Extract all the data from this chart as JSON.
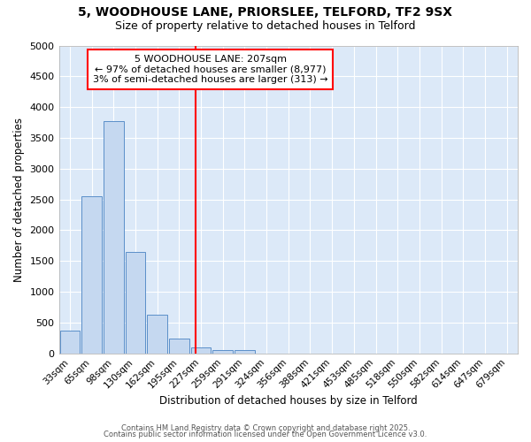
{
  "title_line1": "5, WOODHOUSE LANE, PRIORSLEE, TELFORD, TF2 9SX",
  "title_line2": "Size of property relative to detached houses in Telford",
  "xlabel": "Distribution of detached houses by size in Telford",
  "ylabel": "Number of detached properties",
  "bar_color": "#c5d8f0",
  "bar_edge_color": "#5b8fc9",
  "background_color": "#dce9f8",
  "fig_background": "#ffffff",
  "grid_color": "#ffffff",
  "bin_labels": [
    "33sqm",
    "65sqm",
    "98sqm",
    "130sqm",
    "162sqm",
    "195sqm",
    "227sqm",
    "259sqm",
    "291sqm",
    "324sqm",
    "356sqm",
    "388sqm",
    "421sqm",
    "453sqm",
    "485sqm",
    "518sqm",
    "550sqm",
    "582sqm",
    "614sqm",
    "647sqm",
    "679sqm"
  ],
  "bar_heights": [
    375,
    2550,
    3775,
    1650,
    625,
    235,
    100,
    55,
    55,
    0,
    0,
    0,
    0,
    0,
    0,
    0,
    0,
    0,
    0,
    0,
    0
  ],
  "red_line_x": 5.75,
  "ylim": [
    0,
    5000
  ],
  "yticks": [
    0,
    500,
    1000,
    1500,
    2000,
    2500,
    3000,
    3500,
    4000,
    4500,
    5000
  ],
  "annotation_title": "5 WOODHOUSE LANE: 207sqm",
  "annotation_line1": "← 97% of detached houses are smaller (8,977)",
  "annotation_line2": "3% of semi-detached houses are larger (313) →",
  "footer_line1": "Contains HM Land Registry data © Crown copyright and database right 2025.",
  "footer_line2": "Contains public sector information licensed under the Open Government Licence v3.0."
}
